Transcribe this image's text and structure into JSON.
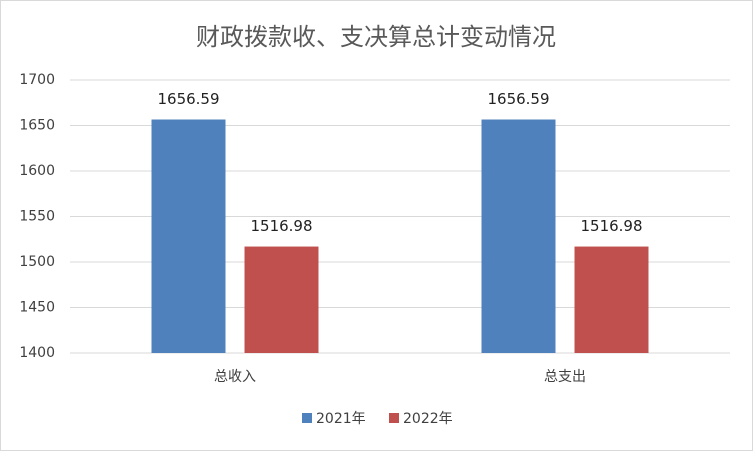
{
  "chart_data": {
    "type": "bar",
    "title": "财政拨款收、支决算总计变动情况",
    "categories": [
      "总收入",
      "总支出"
    ],
    "series": [
      {
        "name": "2021年",
        "color": "#4f81bd",
        "values": [
          1656.59,
          1656.59
        ]
      },
      {
        "name": "2022年",
        "color": "#c0504d",
        "values": [
          1516.98,
          1516.98
        ]
      }
    ],
    "ylim": [
      1400,
      1700
    ],
    "yticks": [
      1400,
      1450,
      1500,
      1550,
      1600,
      1650,
      1700
    ],
    "grid": true,
    "legend": "bottom"
  }
}
